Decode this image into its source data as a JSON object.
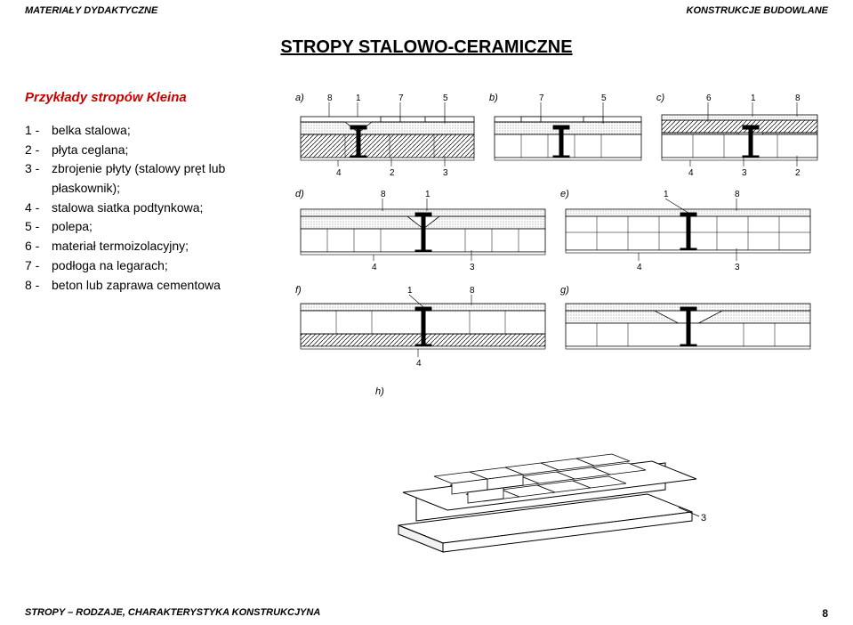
{
  "header": {
    "left": "MATERIAŁY DYDAKTYCZNE",
    "right": "KONSTRUKCJE BUDOWLANE"
  },
  "title": "STROPY STALOWO-CERAMICZNE",
  "subtitle": "Przykłady stropów Kleina",
  "legend": [
    {
      "num": "1 -",
      "text": "belka stalowa;"
    },
    {
      "num": "2 -",
      "text": "płyta ceglana;"
    },
    {
      "num": "3 -",
      "text": "zbrojenie płyty (stalowy pręt lub płaskownik);"
    },
    {
      "num": "4 -",
      "text": "stalowa siatka podtynkowa;"
    },
    {
      "num": "5 -",
      "text": "polepa;"
    },
    {
      "num": "6 -",
      "text": "materiał termoizolacyjny;"
    },
    {
      "num": "7 -",
      "text": "podłoga na legarach;"
    },
    {
      "num": "8 -",
      "text": "beton lub zaprawa cementowa"
    }
  ],
  "figures": {
    "row1": [
      "a)",
      "b)",
      "c)"
    ],
    "row2": [
      "d)",
      "e)"
    ],
    "row3": [
      "f)",
      "g)"
    ],
    "iso": "h)",
    "labels": {
      "a": [
        "8",
        "1",
        "7",
        "5"
      ],
      "b": [
        "7",
        "5"
      ],
      "c": [
        "6",
        "1",
        "8"
      ],
      "a_bot": [
        "4",
        "2",
        "3"
      ],
      "c_bot": [
        "4",
        "3",
        "2"
      ],
      "d": [
        "8",
        "1"
      ],
      "e": [
        "1",
        "8"
      ],
      "d_bot": [
        "4",
        "3"
      ],
      "e_bot": [
        "4",
        "3"
      ],
      "f": [
        "1",
        "8"
      ],
      "g": [],
      "f_bot": [
        "4"
      ],
      "iso_label": "3"
    }
  },
  "footer": {
    "left": "STROPY – RODZAJE, CHARAKTERYSTYKA KONSTRUKCJYNA",
    "page": "8"
  },
  "colors": {
    "text": "#000000",
    "accent": "#cc0000",
    "line": "#000000",
    "hatch": "#000000",
    "stipple": "#000000",
    "bg": "#ffffff"
  }
}
